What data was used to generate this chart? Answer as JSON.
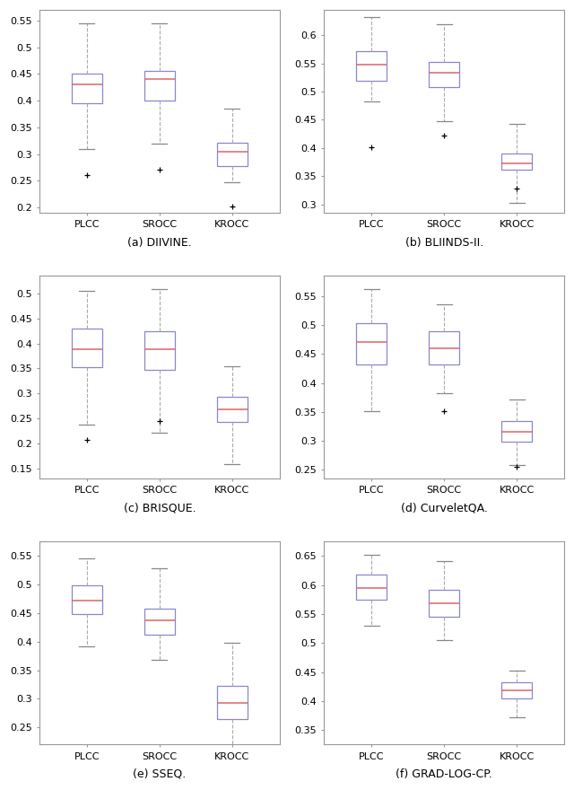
{
  "subplots": [
    {
      "title": "(a) DIIVINE.",
      "ylim": [
        0.19,
        0.57
      ],
      "yticks": [
        0.2,
        0.25,
        0.3,
        0.35,
        0.4,
        0.45,
        0.5,
        0.55
      ],
      "boxes": [
        {
          "label": "PLCC",
          "q1": 0.395,
          "med": 0.43,
          "q3": 0.45,
          "whislo": 0.31,
          "whishi": 0.545,
          "fliers": [
            0.26
          ]
        },
        {
          "label": "SROCC",
          "q1": 0.4,
          "med": 0.44,
          "q3": 0.455,
          "whislo": 0.32,
          "whishi": 0.545,
          "fliers": [
            0.27
          ]
        },
        {
          "label": "KROCC",
          "q1": 0.278,
          "med": 0.305,
          "q3": 0.322,
          "whislo": 0.248,
          "whishi": 0.385,
          "fliers": [
            0.202
          ]
        }
      ]
    },
    {
      "title": "(b) BLIINDS-II.",
      "ylim": [
        0.285,
        0.645
      ],
      "yticks": [
        0.3,
        0.35,
        0.4,
        0.45,
        0.5,
        0.55,
        0.6
      ],
      "boxes": [
        {
          "label": "PLCC",
          "q1": 0.52,
          "med": 0.548,
          "q3": 0.572,
          "whislo": 0.482,
          "whishi": 0.632,
          "fliers": [
            0.402
          ]
        },
        {
          "label": "SROCC",
          "q1": 0.508,
          "med": 0.533,
          "q3": 0.553,
          "whislo": 0.448,
          "whishi": 0.62,
          "fliers": [
            0.422
          ]
        },
        {
          "label": "KROCC",
          "q1": 0.362,
          "med": 0.372,
          "q3": 0.39,
          "whislo": 0.303,
          "whishi": 0.442,
          "fliers": [
            0.328
          ]
        }
      ]
    },
    {
      "title": "(c) BRISQUE.",
      "ylim": [
        0.13,
        0.535
      ],
      "yticks": [
        0.15,
        0.2,
        0.25,
        0.3,
        0.35,
        0.4,
        0.45,
        0.5
      ],
      "boxes": [
        {
          "label": "PLCC",
          "q1": 0.352,
          "med": 0.388,
          "q3": 0.43,
          "whislo": 0.238,
          "whishi": 0.505,
          "fliers": [
            0.208
          ]
        },
        {
          "label": "SROCC",
          "q1": 0.348,
          "med": 0.388,
          "q3": 0.425,
          "whislo": 0.222,
          "whishi": 0.508,
          "fliers": [
            0.245
          ]
        },
        {
          "label": "KROCC",
          "q1": 0.243,
          "med": 0.268,
          "q3": 0.293,
          "whislo": 0.158,
          "whishi": 0.355,
          "fliers": []
        }
      ]
    },
    {
      "title": "(d) CurveletQA.",
      "ylim": [
        0.235,
        0.585
      ],
      "yticks": [
        0.25,
        0.3,
        0.35,
        0.4,
        0.45,
        0.5,
        0.55
      ],
      "boxes": [
        {
          "label": "PLCC",
          "q1": 0.432,
          "med": 0.47,
          "q3": 0.503,
          "whislo": 0.352,
          "whishi": 0.562,
          "fliers": []
        },
        {
          "label": "SROCC",
          "q1": 0.432,
          "med": 0.46,
          "q3": 0.49,
          "whislo": 0.382,
          "whishi": 0.535,
          "fliers": [
            0.352
          ]
        },
        {
          "label": "KROCC",
          "q1": 0.298,
          "med": 0.315,
          "q3": 0.335,
          "whislo": 0.258,
          "whishi": 0.372,
          "fliers": [
            0.255
          ]
        }
      ]
    },
    {
      "title": "(e) SSEQ.",
      "ylim": [
        0.22,
        0.575
      ],
      "yticks": [
        0.25,
        0.3,
        0.35,
        0.4,
        0.45,
        0.5,
        0.55
      ],
      "boxes": [
        {
          "label": "PLCC",
          "q1": 0.448,
          "med": 0.472,
          "q3": 0.498,
          "whislo": 0.392,
          "whishi": 0.545,
          "fliers": []
        },
        {
          "label": "SROCC",
          "q1": 0.412,
          "med": 0.438,
          "q3": 0.458,
          "whislo": 0.368,
          "whishi": 0.528,
          "fliers": []
        },
        {
          "label": "KROCC",
          "q1": 0.265,
          "med": 0.293,
          "q3": 0.322,
          "whislo": 0.218,
          "whishi": 0.398,
          "fliers": []
        }
      ]
    },
    {
      "title": "(f) GRAD-LOG-CP.",
      "ylim": [
        0.325,
        0.675
      ],
      "yticks": [
        0.35,
        0.4,
        0.45,
        0.5,
        0.55,
        0.6,
        0.65
      ],
      "boxes": [
        {
          "label": "PLCC",
          "q1": 0.575,
          "med": 0.595,
          "q3": 0.618,
          "whislo": 0.53,
          "whishi": 0.652,
          "fliers": []
        },
        {
          "label": "SROCC",
          "q1": 0.545,
          "med": 0.568,
          "q3": 0.592,
          "whislo": 0.505,
          "whishi": 0.642,
          "fliers": []
        },
        {
          "label": "KROCC",
          "q1": 0.405,
          "med": 0.418,
          "q3": 0.432,
          "whislo": 0.372,
          "whishi": 0.452,
          "fliers": []
        }
      ]
    }
  ],
  "box_color": "#8888cc",
  "median_color": "#dd6666",
  "whisker_color": "#aaaaaa",
  "cap_color": "#888888",
  "flier_color": "#dd4444",
  "fig_width": 6.4,
  "fig_height": 8.8
}
